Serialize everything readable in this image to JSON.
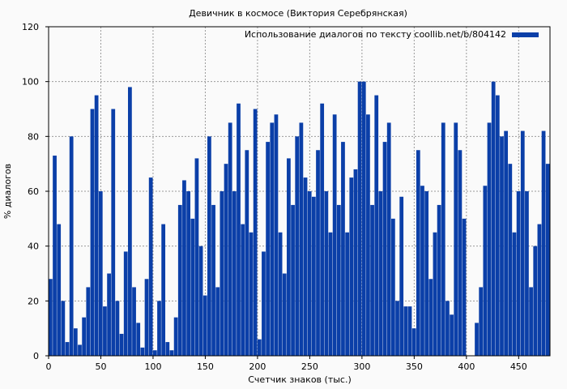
{
  "chart_data": {
    "type": "bar",
    "title": "Девичник в космосе (Виктория Серебрянская)",
    "xlabel": "Счетчик знаков (тыс.)",
    "ylabel": "% диалогов",
    "xlim": [
      0,
      480
    ],
    "ylim": [
      0,
      120
    ],
    "x_ticks": [
      0,
      50,
      100,
      150,
      200,
      250,
      300,
      350,
      400,
      450
    ],
    "y_ticks": [
      0,
      20,
      40,
      60,
      80,
      100,
      120
    ],
    "grid": true,
    "legend_position": "top-right",
    "bar_color": "#0b3fa8",
    "series": [
      {
        "name": "Использование диалогов по тексту coollib.net/b/804142",
        "x": [
          0,
          4,
          8,
          12,
          16,
          20,
          24,
          28,
          32,
          36,
          40,
          44,
          48,
          52,
          56,
          60,
          64,
          68,
          72,
          76,
          80,
          84,
          88,
          92,
          96,
          100,
          104,
          108,
          112,
          116,
          120,
          124,
          128,
          132,
          136,
          140,
          144,
          148,
          152,
          156,
          160,
          164,
          168,
          172,
          176,
          180,
          184,
          188,
          192,
          196,
          200,
          204,
          208,
          212,
          216,
          220,
          224,
          228,
          232,
          236,
          240,
          244,
          248,
          252,
          256,
          260,
          264,
          268,
          272,
          276,
          280,
          284,
          288,
          292,
          296,
          300,
          304,
          308,
          312,
          316,
          320,
          324,
          328,
          332,
          336,
          340,
          344,
          348,
          352,
          356,
          360,
          364,
          368,
          372,
          376,
          380,
          384,
          388,
          392,
          396,
          400,
          404,
          408,
          412,
          416,
          420,
          424,
          428,
          432,
          436,
          440,
          444,
          448,
          452,
          456,
          460,
          464,
          468,
          472,
          476
        ],
        "values": [
          28,
          73,
          48,
          20,
          5,
          80,
          10,
          4,
          14,
          25,
          90,
          95,
          60,
          18,
          30,
          90,
          20,
          8,
          38,
          98,
          25,
          12,
          3,
          28,
          65,
          2,
          20,
          48,
          5,
          2,
          14,
          55,
          64,
          60,
          50,
          72,
          40,
          22,
          80,
          55,
          25,
          60,
          70,
          85,
          60,
          92,
          48,
          75,
          45,
          90,
          6,
          38,
          78,
          85,
          88,
          45,
          30,
          72,
          55,
          80,
          85,
          65,
          60,
          58,
          75,
          92,
          60,
          45,
          88,
          55,
          78,
          45,
          65,
          68,
          100,
          100,
          88,
          55,
          95,
          60,
          78,
          85,
          50,
          20,
          58,
          18,
          18,
          10,
          75,
          62,
          60,
          28,
          45,
          55,
          85,
          20,
          15,
          85,
          75,
          50,
          0,
          0,
          12,
          25,
          62,
          85,
          100,
          95,
          80,
          82,
          70,
          45,
          60,
          82,
          60,
          25,
          40,
          48,
          82,
          70
        ]
      }
    ]
  }
}
